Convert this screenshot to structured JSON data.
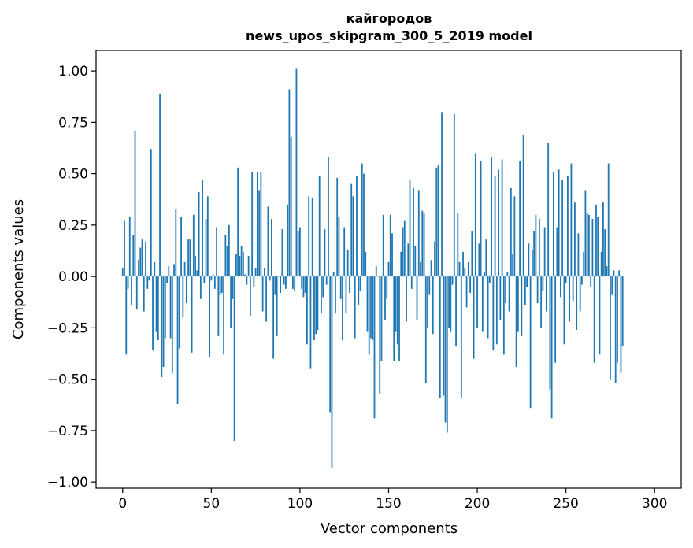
{
  "chart_data": {
    "type": "bar",
    "title_line1": "кайгородов",
    "title_line2": "news_upos_skipgram_300_5_2019 model",
    "xlabel": "Vector components",
    "ylabel": "Components values",
    "xlim": [
      -15,
      315
    ],
    "ylim": [
      -1.03,
      1.1
    ],
    "x_ticks": [
      0,
      50,
      100,
      150,
      200,
      250,
      300
    ],
    "x_tick_labels": [
      "0",
      "50",
      "100",
      "150",
      "200",
      "250",
      "300"
    ],
    "y_ticks": [
      1.0,
      0.75,
      0.5,
      0.25,
      0.0,
      -0.25,
      -0.5,
      -0.75,
      -1.0
    ],
    "y_tick_labels": [
      "1.00",
      "0.75",
      "0.50",
      "0.25",
      "0.00",
      "−0.25",
      "−0.50",
      "−0.75",
      "−1.00"
    ],
    "bar_color": "#1f77b4",
    "grid": false,
    "values": [
      0.04,
      0.27,
      -0.38,
      -0.06,
      0.29,
      -0.14,
      0.2,
      0.71,
      -0.16,
      0.08,
      0.14,
      0.18,
      -0.17,
      0.17,
      -0.06,
      -0.02,
      0.62,
      -0.36,
      0.07,
      -0.27,
      -0.31,
      0.89,
      -0.49,
      -0.44,
      -0.3,
      -0.03,
      0.05,
      -0.3,
      -0.47,
      0.06,
      0.33,
      -0.62,
      -0.35,
      0.29,
      -0.2,
      0.07,
      -0.13,
      0.18,
      0.18,
      -0.37,
      0.3,
      0.1,
      0.03,
      0.41,
      -0.11,
      0.47,
      -0.03,
      0.28,
      0.39,
      -0.39,
      -0.02,
      0.01,
      -0.06,
      0.24,
      -0.29,
      -0.09,
      -0.08,
      -0.38,
      0.2,
      0.15,
      0.25,
      -0.25,
      -0.11,
      -0.8,
      0.11,
      0.53,
      0.1,
      0.15,
      0.12,
      0.01,
      -0.04,
      0.1,
      -0.19,
      0.51,
      -0.05,
      0.04,
      0.51,
      0.42,
      0.51,
      -0.17,
      0.04,
      -0.22,
      0.34,
      -0.02,
      0.28,
      -0.4,
      -0.09,
      -0.29,
      0.0,
      -0.08,
      0.23,
      -0.04,
      -0.06,
      0.35,
      0.91,
      0.68,
      -0.06,
      -0.07,
      1.01,
      0.22,
      0.24,
      -0.06,
      -0.1,
      -0.08,
      -0.33,
      0.39,
      -0.45,
      0.38,
      -0.31,
      -0.28,
      -0.26,
      0.49,
      -0.18,
      -0.1,
      0.23,
      -0.04,
      0.58,
      -0.66,
      -0.93,
      0.02,
      -0.18,
      0.48,
      0.29,
      -0.11,
      -0.31,
      0.24,
      -0.18,
      0.13,
      -0.08,
      0.45,
      0.39,
      -0.3,
      0.49,
      -0.14,
      -0.07,
      0.55,
      0.5,
      0.12,
      -0.27,
      -0.38,
      -0.3,
      -0.31,
      -0.69,
      0.05,
      0.0,
      -0.57,
      -0.41,
      0.3,
      -0.21,
      -0.11,
      0.07,
      0.3,
      0.21,
      -0.41,
      -0.27,
      -0.33,
      -0.41,
      0.12,
      0.24,
      0.27,
      -0.22,
      0.16,
      0.47,
      -0.06,
      0.43,
      0.15,
      -0.21,
      0.42,
      0.07,
      0.32,
      0.31,
      -0.52,
      -0.25,
      -0.09,
      0.08,
      -0.28,
      0.17,
      0.53,
      0.54,
      -0.59,
      0.8,
      -0.58,
      -0.71,
      -0.76,
      -0.25,
      -0.27,
      -0.04,
      0.79,
      -0.34,
      0.31,
      0.07,
      -0.59,
      0.12,
      0.04,
      -0.15,
      0.07,
      -0.08,
      0.22,
      -0.4,
      0.6,
      -0.25,
      0.16,
      0.56,
      -0.27,
      0.02,
      0.18,
      -0.3,
      -0.03,
      0.58,
      -0.36,
      0.49,
      -0.33,
      0.52,
      -0.21,
      0.57,
      -0.38,
      -0.13,
      0.02,
      -0.17,
      0.43,
      0.11,
      0.39,
      -0.44,
      -0.27,
      0.56,
      -0.29,
      0.69,
      -0.14,
      -0.05,
      0.16,
      -0.64,
      0.13,
      0.22,
      0.3,
      -0.13,
      0.28,
      -0.25,
      -0.07,
      0.24,
      -0.17,
      0.65,
      -0.55,
      -0.69,
      0.51,
      -0.42,
      0.24,
      0.52,
      -0.1,
      0.47,
      -0.33,
      -0.03,
      0.49,
      -0.22,
      0.55,
      -0.12,
      0.36,
      -0.26,
      0.21,
      -0.17,
      -0.04,
      0.12,
      0.42,
      0.31,
      0.3,
      -0.05,
      0.28,
      -0.42,
      0.35,
      0.29,
      -0.38,
      0.12,
      0.36,
      0.23,
      0.05,
      0.55,
      -0.5,
      -0.09,
      0.03,
      -0.52,
      -0.42,
      0.03,
      -0.47,
      -0.34
    ]
  }
}
